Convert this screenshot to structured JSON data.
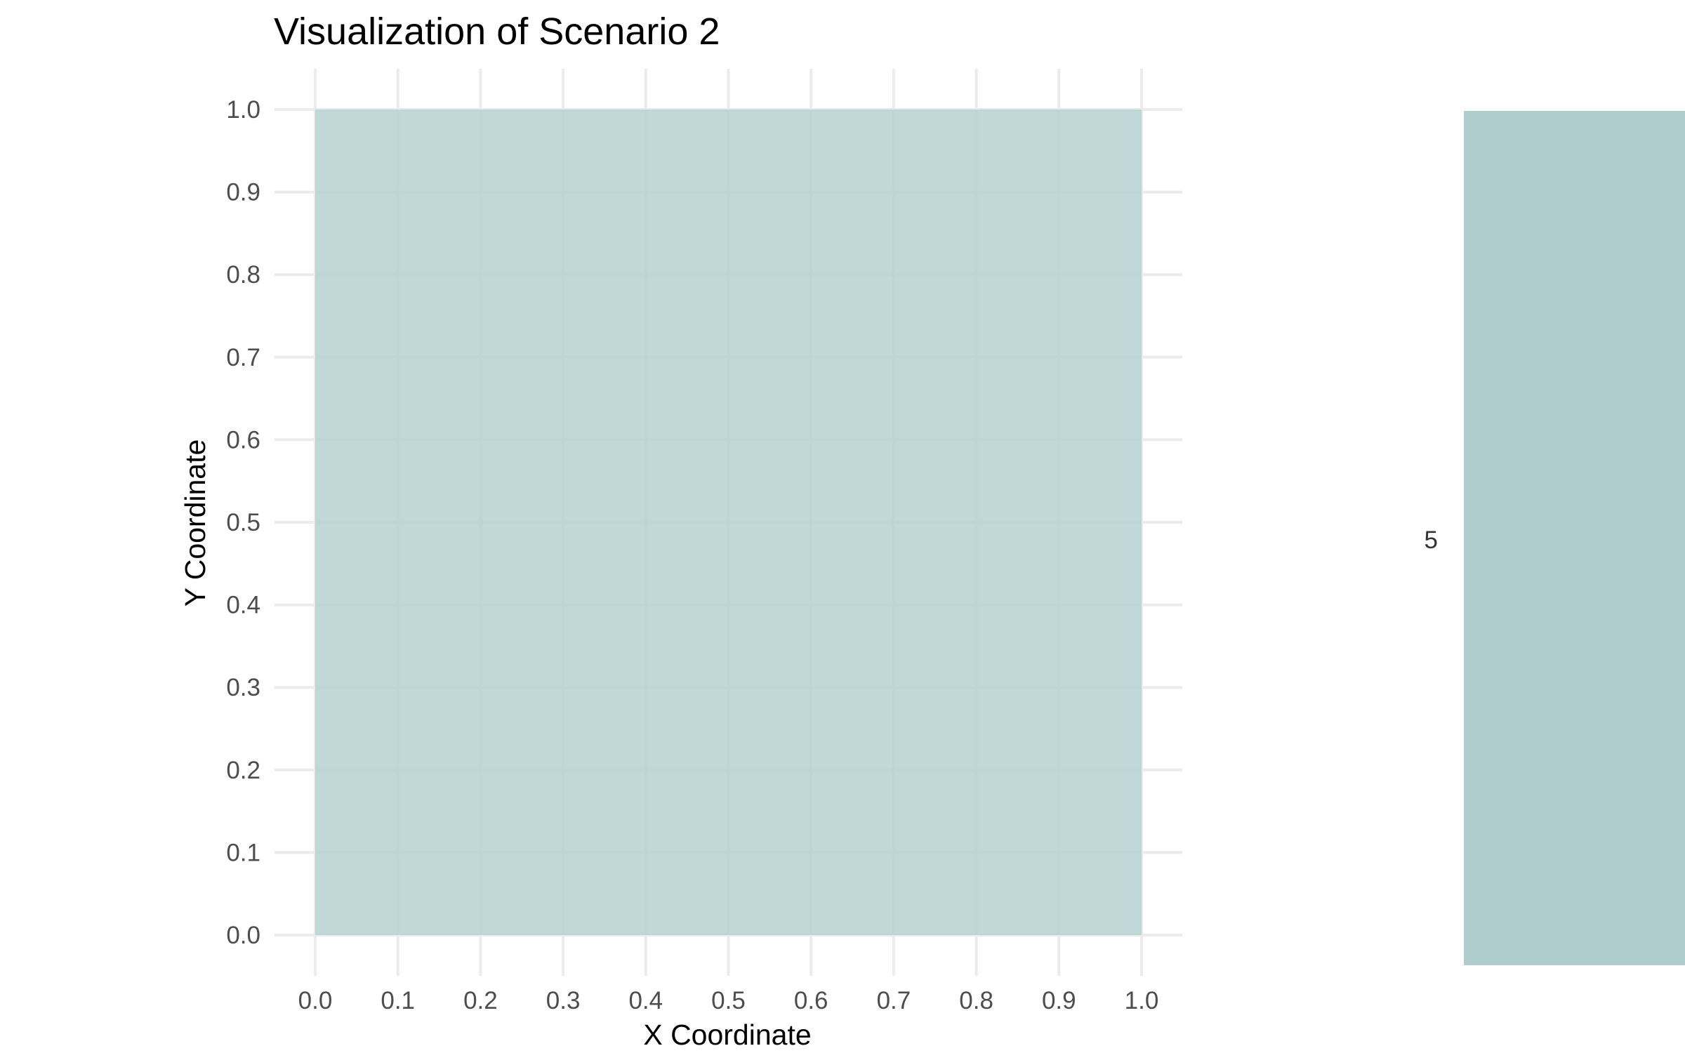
{
  "chart_data": {
    "type": "heatmap",
    "title": "Visualization of Scenario 2",
    "xlabel": "X Coordinate",
    "ylabel": "Y Coordinate",
    "xlim": [
      0,
      1
    ],
    "ylim": [
      0,
      1
    ],
    "x_ticks": [
      "0.0",
      "0.1",
      "0.2",
      "0.3",
      "0.4",
      "0.5",
      "0.6",
      "0.7",
      "0.8",
      "0.9",
      "1.0"
    ],
    "y_ticks": [
      "0.0",
      "0.1",
      "0.2",
      "0.3",
      "0.4",
      "0.5",
      "0.6",
      "0.7",
      "0.8",
      "0.9",
      "1.0"
    ],
    "grid": true,
    "tiles": [
      {
        "x0": 0,
        "x1": 1,
        "y0": 0,
        "y1": 1,
        "value": 5
      }
    ],
    "legend": {
      "placement": "right",
      "labels": [
        "5"
      ]
    },
    "colors": {
      "tile_fill": "#b2cfcf",
      "legend_fill": "#b0cdcd",
      "grid": "#ebebeb"
    }
  }
}
